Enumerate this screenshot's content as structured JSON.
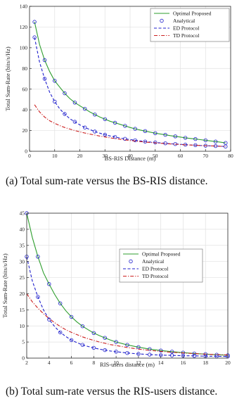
{
  "captions": {
    "a": "(a) Total sum-rate versus the BS-RIS distance.",
    "b": "(b) Total sum-rate versus the RIS-users distance."
  },
  "chart_data": [
    {
      "type": "line",
      "title": "",
      "xlabel": "BS-RIS Distance (m)",
      "ylabel": "Total Sum-Rate (bits/s/Hz)",
      "xlim": [
        0,
        80
      ],
      "ylim": [
        0,
        140
      ],
      "xticks": [
        0,
        10,
        20,
        30,
        40,
        50,
        60,
        70,
        80
      ],
      "yticks": [
        0,
        20,
        40,
        60,
        80,
        100,
        120,
        140
      ],
      "grid": true,
      "legend_position": "top-right",
      "series": [
        {
          "name": "Optimal Proposed",
          "style": "solid",
          "color": "#2e9e2e",
          "marker": "none",
          "x": [
            2,
            4,
            6,
            8,
            10,
            12,
            14,
            16,
            18,
            20,
            22,
            24,
            26,
            28,
            30,
            32,
            34,
            36,
            38,
            40,
            42,
            44,
            46,
            48,
            50,
            52,
            54,
            56,
            58,
            60,
            62,
            64,
            66,
            68,
            70,
            72,
            74,
            76,
            78
          ],
          "y": [
            125,
            103,
            88,
            77,
            68,
            62,
            56,
            51,
            47,
            44,
            41,
            38,
            35.5,
            33,
            31,
            29,
            27.5,
            26,
            24.5,
            23,
            21.7,
            20.5,
            19.5,
            18.5,
            17.5,
            16.7,
            15.9,
            15.1,
            14.4,
            13.7,
            13,
            12.4,
            11.8,
            11.2,
            10.6,
            10,
            9.4,
            8.8,
            8
          ]
        },
        {
          "name": "Analytical",
          "style": "none",
          "color": "#1f1fcc",
          "marker": "circle",
          "x": [
            2,
            6,
            10,
            14,
            18,
            22,
            26,
            30,
            34,
            38,
            42,
            46,
            50,
            54,
            58,
            62,
            66,
            70,
            74,
            78,
            2,
            6,
            10,
            14,
            18,
            22,
            26,
            30,
            34,
            38,
            42,
            46,
            50,
            54,
            58,
            62,
            66,
            70,
            74,
            78
          ],
          "y": [
            125,
            88,
            68,
            56,
            47,
            41,
            35.5,
            31,
            27.5,
            24.5,
            21.7,
            19.5,
            17.5,
            15.9,
            14.4,
            13,
            11.8,
            10.6,
            9.4,
            8,
            110,
            70,
            48,
            36,
            28.5,
            23,
            19,
            16,
            13.8,
            12,
            10.6,
            9.4,
            8.5,
            7.7,
            7,
            6.4,
            5.9,
            5.4,
            5,
            4.6
          ]
        },
        {
          "name": "ED Protocol",
          "style": "dashed",
          "color": "#1f1fcc",
          "marker": "none",
          "x": [
            2,
            4,
            6,
            8,
            10,
            12,
            14,
            16,
            18,
            20,
            22,
            24,
            26,
            28,
            30,
            32,
            34,
            36,
            38,
            40,
            42,
            44,
            46,
            48,
            50,
            52,
            54,
            56,
            58,
            60,
            62,
            64,
            66,
            68,
            70,
            72,
            74,
            76,
            78
          ],
          "y": [
            110,
            86,
            70,
            57,
            48,
            41,
            36,
            31.5,
            28.5,
            25.5,
            23,
            21,
            19,
            17.5,
            16,
            14.8,
            13.8,
            12.8,
            12,
            11.3,
            10.6,
            10,
            9.4,
            8.9,
            8.5,
            8.1,
            7.7,
            7.3,
            7,
            6.7,
            6.4,
            6.1,
            5.9,
            5.6,
            5.4,
            5.2,
            5,
            4.8,
            4.6
          ]
        },
        {
          "name": "TD Protocol",
          "style": "dashdot",
          "color": "#cc1f1f",
          "marker": "none",
          "x": [
            2,
            4,
            6,
            8,
            10,
            12,
            14,
            16,
            18,
            20,
            22,
            24,
            26,
            28,
            30,
            32,
            34,
            36,
            38,
            40,
            42,
            44,
            46,
            48,
            50,
            52,
            54,
            56,
            58,
            60,
            62,
            64,
            66,
            68,
            70,
            72,
            74,
            76,
            78
          ],
          "y": [
            45,
            38,
            33,
            29.5,
            27,
            24.8,
            23,
            21.5,
            20,
            18.8,
            17.6,
            16.6,
            15.6,
            14.7,
            13.8,
            13,
            12.3,
            11.6,
            11,
            10.4,
            9.9,
            9.4,
            8.9,
            8.5,
            8.1,
            7.7,
            7.4,
            7.1,
            6.8,
            6.5,
            6.2,
            6,
            5.8,
            5.6,
            5.4,
            5.2,
            5,
            4.8,
            4.6
          ]
        }
      ]
    },
    {
      "type": "line",
      "title": "",
      "xlabel": "RIS-users distance (m)",
      "ylabel": "Total Sum-Rate (bits/s/Hz)",
      "xlim": [
        2,
        20
      ],
      "ylim": [
        0,
        45
      ],
      "xticks": [
        2,
        4,
        6,
        8,
        10,
        12,
        14,
        16,
        18,
        20
      ],
      "yticks": [
        0,
        5,
        10,
        15,
        20,
        25,
        30,
        35,
        40,
        45
      ],
      "grid": true,
      "legend_position": "top-right",
      "series": [
        {
          "name": "Optimal Proposed",
          "style": "solid",
          "color": "#2e9e2e",
          "marker": "none",
          "x": [
            2,
            2.5,
            3,
            3.5,
            4,
            4.5,
            5,
            5.5,
            6,
            6.5,
            7,
            7.5,
            8,
            8.5,
            9,
            9.5,
            10,
            11,
            12,
            13,
            14,
            15,
            16,
            17,
            18,
            19,
            20
          ],
          "y": [
            45,
            37.5,
            31.5,
            26.5,
            23,
            19.8,
            17,
            14.7,
            12.8,
            11.2,
            9.9,
            8.8,
            7.8,
            7,
            6.3,
            5.6,
            5,
            4.1,
            3.4,
            2.8,
            2.35,
            2,
            1.7,
            1.45,
            1.25,
            1.05,
            0.9
          ]
        },
        {
          "name": "Analytical",
          "style": "none",
          "color": "#1f1fcc",
          "marker": "circle",
          "x": [
            2,
            3,
            4,
            5,
            6,
            7,
            8,
            9,
            10,
            11,
            12,
            13,
            14,
            15,
            16,
            17,
            18,
            19,
            20,
            2,
            3,
            4,
            5,
            6,
            7,
            8,
            9,
            10,
            11,
            12,
            13,
            14,
            15,
            16,
            17,
            18,
            19,
            20
          ],
          "y": [
            45,
            31.5,
            23,
            17,
            12.8,
            9.9,
            7.8,
            6.3,
            5,
            4.1,
            3.4,
            2.8,
            2.35,
            2,
            1.7,
            1.45,
            1.25,
            1.05,
            0.9,
            31.5,
            19,
            12,
            8,
            5.6,
            4.1,
            3.2,
            2.5,
            2,
            1.6,
            1.3,
            1.1,
            0.95,
            0.85,
            0.75,
            0.7,
            0.62,
            0.56,
            0.5
          ]
        },
        {
          "name": "ED Protocol",
          "style": "dashed",
          "color": "#1f1fcc",
          "marker": "none",
          "x": [
            2,
            2.5,
            3,
            3.5,
            4,
            4.5,
            5,
            5.5,
            6,
            6.5,
            7,
            7.5,
            8,
            8.5,
            9,
            9.5,
            10,
            11,
            12,
            13,
            14,
            15,
            16,
            17,
            18,
            19,
            20
          ],
          "y": [
            31.5,
            24,
            19,
            15,
            12,
            9.8,
            8,
            6.7,
            5.6,
            4.8,
            4.1,
            3.6,
            3.2,
            2.8,
            2.5,
            2.2,
            2,
            1.6,
            1.3,
            1.1,
            0.95,
            0.85,
            0.75,
            0.7,
            0.62,
            0.56,
            0.5
          ]
        },
        {
          "name": "TD Protocol",
          "style": "dashdot",
          "color": "#cc1f1f",
          "marker": "none",
          "x": [
            2,
            2.5,
            3,
            3.5,
            4,
            4.5,
            5,
            5.5,
            6,
            6.5,
            7,
            7.5,
            8,
            8.5,
            9,
            9.5,
            10,
            11,
            12,
            13,
            14,
            15,
            16,
            17,
            18,
            19,
            20
          ],
          "y": [
            20,
            17.5,
            15.5,
            13.8,
            12.3,
            11,
            9.8,
            8.8,
            8,
            7.3,
            6.6,
            6,
            5.5,
            5,
            4.6,
            4.2,
            3.9,
            3.3,
            2.8,
            2.4,
            2.1,
            1.8,
            1.6,
            1.4,
            1.25,
            1.1,
            1
          ]
        }
      ]
    }
  ]
}
